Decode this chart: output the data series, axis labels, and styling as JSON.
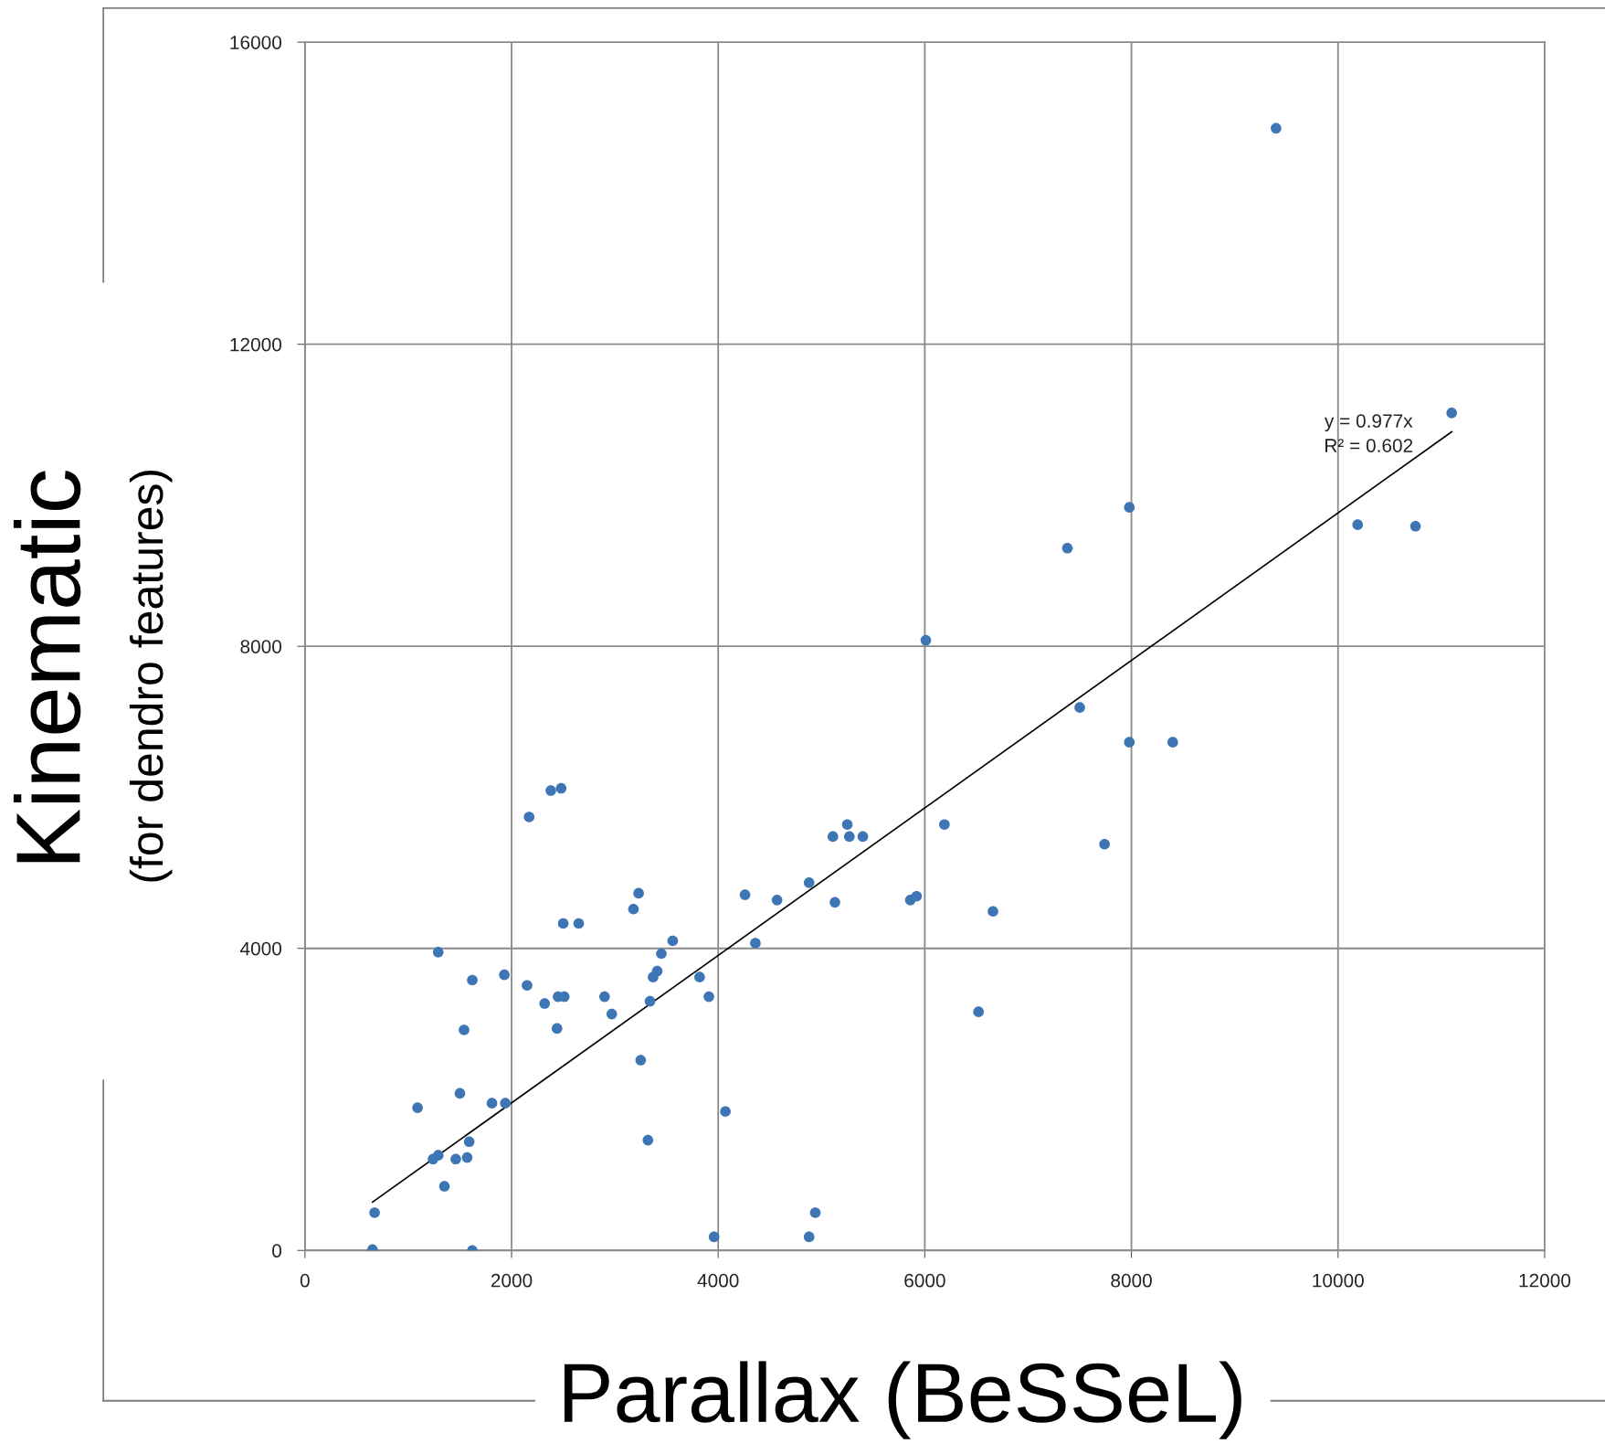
{
  "chart_data": {
    "type": "scatter",
    "xlabel": "Parallax (BeSSeL)",
    "ylabel": "Kinematic\n(for dendro features)",
    "xlim": [
      0,
      12000
    ],
    "xticks": [
      0,
      2000,
      4000,
      6000,
      8000,
      10000,
      12000
    ],
    "ylim": [
      0,
      16000
    ],
    "yticks": [
      0,
      4000,
      8000,
      12000,
      16000
    ],
    "grid": true,
    "series": [
      {
        "marker": "circle",
        "color": "#3d75b5",
        "x": [
          654,
          674,
          1090,
          1240,
          1290,
          1290,
          1350,
          1460,
          1500,
          1540,
          1570,
          1590,
          1620,
          1620,
          1810,
          1940,
          1930,
          2150,
          2170,
          2320,
          2380,
          2480,
          2440,
          2450,
          2510,
          2500,
          2650,
          2900,
          2970,
          3180,
          3230,
          3250,
          3320,
          3340,
          3370,
          3410,
          3450,
          3560,
          3820,
          3910,
          3960,
          4070,
          4260,
          4360,
          4570,
          4880,
          4880,
          4940,
          5110,
          5130,
          5250,
          5270,
          5400,
          5860,
          5920,
          6010,
          6190,
          6520,
          6660,
          7380,
          7500,
          7740,
          7980,
          7980,
          8400,
          9400,
          10190,
          10750,
          11100
        ],
        "values": [
          10,
          500,
          1890,
          1210,
          1260,
          3950,
          850,
          1210,
          2080,
          2920,
          1230,
          1440,
          3580,
          0,
          1950,
          1950,
          3650,
          3510,
          5740,
          3270,
          6090,
          6120,
          2940,
          3360,
          3360,
          4330,
          4330,
          3360,
          3130,
          4520,
          4730,
          2520,
          1460,
          3300,
          3620,
          3700,
          3930,
          4100,
          3620,
          3360,
          180,
          1840,
          4710,
          4070,
          4640,
          4870,
          180,
          500,
          5480,
          4610,
          5640,
          5480,
          5480,
          4640,
          4690,
          8080,
          5640,
          3160,
          4490,
          9300,
          7190,
          5380,
          9840,
          6730,
          6730,
          14860,
          9610,
          9590,
          11090
        ]
      },
      {
        "type": "line",
        "color": "#000000",
        "x": [
          654,
          11100
        ],
        "values": [
          640,
          10840
        ]
      }
    ],
    "annotations": [
      "y = 0.977x\nR² = 0.602"
    ]
  }
}
